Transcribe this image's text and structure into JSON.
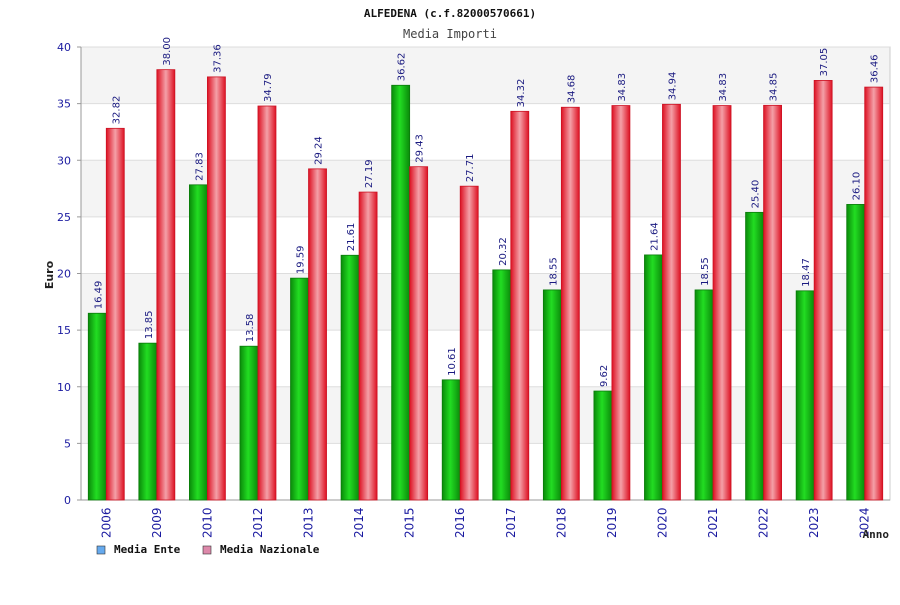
{
  "chart_data": {
    "type": "bar",
    "title": "ALFEDENA (c.f.82000570661)",
    "subtitle": "Media Importi",
    "xlabel": "Anno",
    "ylabel": "Euro",
    "ylim": [
      0,
      40
    ],
    "yticks": [
      "0",
      "5",
      "10",
      "15",
      "20",
      "25",
      "30",
      "35",
      "40"
    ],
    "categories": [
      "2006",
      "2009",
      "2010",
      "2012",
      "2013",
      "2014",
      "2015",
      "2016",
      "2017",
      "2018",
      "2019",
      "2020",
      "2021",
      "2022",
      "2023",
      "2024"
    ],
    "series": [
      {
        "name": "Media Ente",
        "values": [
          16.49,
          13.85,
          27.83,
          13.58,
          19.59,
          21.61,
          36.62,
          10.61,
          20.32,
          18.55,
          9.62,
          21.64,
          18.55,
          25.4,
          18.47,
          26.1
        ],
        "labels": [
          "16.49",
          "13.85",
          "27.83",
          "13.58",
          "19.59",
          "21.61",
          "36.62",
          "10.61",
          "20.32",
          "18.55",
          "9.62",
          "21.64",
          "18.55",
          "25.40",
          "18.47",
          "26.10"
        ],
        "bar_color": "#11b811",
        "legend_color": "#66aaee"
      },
      {
        "name": "Media Nazionale",
        "values": [
          32.82,
          38.0,
          37.36,
          34.79,
          29.24,
          27.19,
          29.43,
          27.71,
          34.32,
          34.68,
          34.83,
          34.94,
          34.83,
          34.85,
          37.05,
          36.46
        ],
        "labels": [
          "32.82",
          "38.00",
          "37.36",
          "34.79",
          "29.24",
          "27.19",
          "29.43",
          "27.71",
          "34.32",
          "34.68",
          "34.83",
          "34.94",
          "34.83",
          "34.85",
          "37.05",
          "36.46"
        ],
        "bar_color": "#ee2233",
        "legend_color": "#dd88aa"
      }
    ],
    "grid": true,
    "legend_position": "bottom-left"
  }
}
